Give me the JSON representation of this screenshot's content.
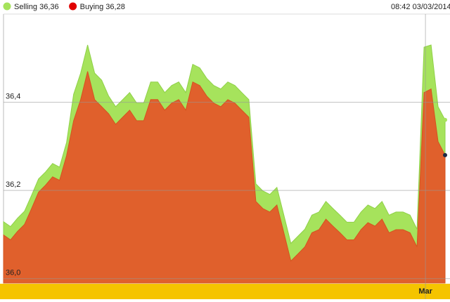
{
  "chart_data": {
    "type": "area",
    "timestamp": "08:42 03/03/2014",
    "categories": [
      null,
      null,
      null,
      null,
      null,
      null,
      null,
      null,
      null,
      null,
      null,
      null,
      null,
      null,
      null,
      null,
      null,
      null,
      null,
      null,
      null,
      null,
      null,
      null,
      null,
      null,
      null,
      null,
      null,
      null,
      null,
      null,
      null,
      null,
      null,
      null,
      null,
      null,
      null,
      null,
      null,
      null,
      null,
      null,
      null,
      null,
      null,
      null,
      null,
      null,
      null,
      null,
      null,
      null,
      null,
      null,
      null,
      null,
      null,
      null,
      "Mar",
      null,
      null,
      null
    ],
    "series": [
      {
        "name": "Selling 36,36",
        "color": "#a6e35c",
        "values": [
          36.129,
          36.118,
          36.137,
          36.153,
          36.189,
          36.226,
          36.242,
          36.261,
          36.253,
          36.309,
          36.418,
          36.466,
          36.53,
          36.466,
          36.45,
          36.414,
          36.39,
          36.406,
          36.422,
          36.398,
          36.398,
          36.446,
          36.446,
          36.422,
          36.438,
          36.446,
          36.422,
          36.486,
          36.478,
          36.454,
          36.438,
          36.43,
          36.446,
          36.438,
          36.422,
          36.406,
          36.215,
          36.199,
          36.191,
          36.207,
          36.144,
          36.08,
          36.096,
          36.112,
          36.144,
          36.151,
          36.175,
          36.159,
          36.144,
          36.128,
          36.128,
          36.151,
          36.167,
          36.159,
          36.175,
          36.144,
          36.151,
          36.151,
          36.144,
          36.112,
          36.525,
          36.53,
          36.39,
          36.36
        ]
      },
      {
        "name": "Buying 36,28",
        "color": "#e0602c",
        "values": [
          36.099,
          36.088,
          36.107,
          36.123,
          36.159,
          36.196,
          36.212,
          36.231,
          36.223,
          36.279,
          36.358,
          36.406,
          36.47,
          36.406,
          36.39,
          36.374,
          36.35,
          36.366,
          36.382,
          36.358,
          36.358,
          36.406,
          36.406,
          36.382,
          36.398,
          36.406,
          36.382,
          36.446,
          36.438,
          36.414,
          36.398,
          36.39,
          36.406,
          36.398,
          36.382,
          36.366,
          36.175,
          36.159,
          36.151,
          36.167,
          36.104,
          36.04,
          36.056,
          36.072,
          36.104,
          36.111,
          36.135,
          36.119,
          36.104,
          36.088,
          36.088,
          36.111,
          36.127,
          36.119,
          36.135,
          36.104,
          36.111,
          36.111,
          36.104,
          36.072,
          36.422,
          36.43,
          36.311,
          36.28
        ]
      }
    ],
    "ylim": [
      35.99,
      36.6
    ],
    "yticks": [
      {
        "value": 36.0,
        "label": "36,0"
      },
      {
        "value": 36.2,
        "label": "36,2"
      },
      {
        "value": 36.4,
        "label": "36,4"
      }
    ],
    "grid": true
  }
}
